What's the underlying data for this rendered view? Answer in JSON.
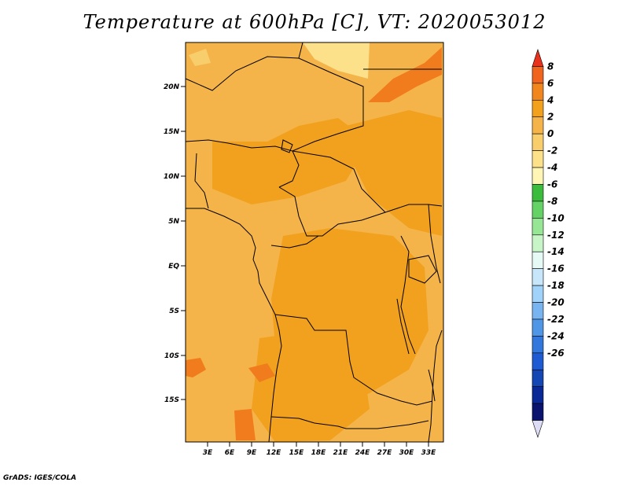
{
  "title": "Temperature at 600hPa [C], VT: 2020053012",
  "credit": "GrADS: IGES/COLA",
  "map": {
    "lat_ticks": [
      "20N",
      "15N",
      "10N",
      "5N",
      "EQ",
      "5S",
      "10S",
      "15S"
    ],
    "lon_ticks": [
      "3E",
      "6E",
      "9E",
      "12E",
      "15E",
      "18E",
      "21E",
      "24E",
      "27E",
      "30E",
      "33E"
    ],
    "fill_colors": {
      "base": "#f5b44a",
      "warm": "#f2a11f",
      "hot": "#f07c1e",
      "cool": "#fce08a",
      "coastline": "#000000"
    }
  },
  "colorbar": {
    "labels": [
      "8",
      "6",
      "4",
      "2",
      "0",
      "-2",
      "-4",
      "-6",
      "-8",
      "-10",
      "-12",
      "-14",
      "-16",
      "-18",
      "-20",
      "-22",
      "-24",
      "-26"
    ],
    "colors": [
      "#e8321e",
      "#f0641e",
      "#f2861e",
      "#f2a11f",
      "#f5b44a",
      "#f8cd6c",
      "#fce08a",
      "#fff5b4",
      "#3cbc3c",
      "#64d264",
      "#96e696",
      "#c8f5c8",
      "#e6faf5",
      "#c8e6fa",
      "#a0d2fa",
      "#78b4f0",
      "#5096e6",
      "#3278dc",
      "#1e5ad2",
      "#1446b4",
      "#0a2896",
      "#0a146e",
      "#dcdcf5"
    ]
  }
}
